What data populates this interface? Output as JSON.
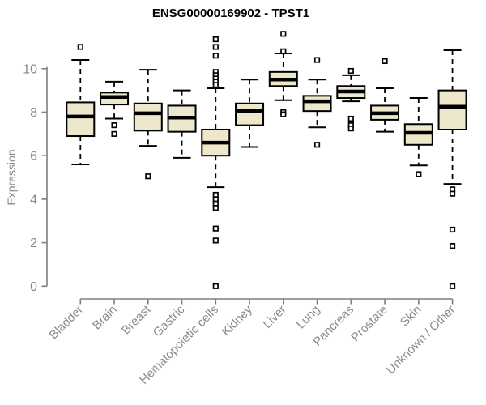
{
  "title": "ENSG00000169902 - TPST1",
  "colors": {
    "box_fill": "#EDE7CC",
    "box_stroke": "#000000",
    "median_color": "#000000",
    "outlier_fill": "#FFFFFF",
    "axis_line": "#7f7f7f",
    "axis_text": "#8a8a8a",
    "title_text": "#000000",
    "background": "#FFFFFF"
  },
  "chart_data": {
    "type": "boxplot",
    "title": "ENSG00000169902 - TPST1",
    "xlabel": "",
    "ylabel": "Expression",
    "ylim": [
      0,
      10
    ],
    "yticks": [
      0,
      2,
      4,
      6,
      8,
      10
    ],
    "grid": false,
    "legend": "none",
    "categories": [
      "Bladder",
      "Brain",
      "Breast",
      "Gastric",
      "Hematopoietic cells",
      "Kidney",
      "Liver",
      "Lung",
      "Pancreas",
      "Prostate",
      "Skin",
      "Unknown / Other"
    ],
    "series": [
      {
        "category": "Bladder",
        "whisker_low": 5.6,
        "q1": 6.9,
        "median": 7.8,
        "q3": 8.45,
        "whisker_high": 10.4,
        "outliers": [
          11.0
        ]
      },
      {
        "category": "Brain",
        "whisker_low": 7.7,
        "q1": 8.35,
        "median": 8.7,
        "q3": 8.9,
        "whisker_high": 9.4,
        "outliers": [
          7.4,
          7.0
        ]
      },
      {
        "category": "Breast",
        "whisker_low": 6.45,
        "q1": 7.15,
        "median": 7.95,
        "q3": 8.4,
        "whisker_high": 9.95,
        "outliers": [
          5.05
        ]
      },
      {
        "category": "Gastric",
        "whisker_low": 5.9,
        "q1": 7.1,
        "median": 7.75,
        "q3": 8.3,
        "whisker_high": 9.0,
        "outliers": []
      },
      {
        "category": "Hematopoietic cells",
        "whisker_low": 4.55,
        "q1": 6.0,
        "median": 6.6,
        "q3": 7.2,
        "whisker_high": 9.1,
        "outliers": [
          11.35,
          11.0,
          10.6,
          9.85,
          9.7,
          9.55,
          9.4,
          9.25,
          4.2,
          4.0,
          3.8,
          3.6,
          2.65,
          2.1,
          0.0
        ]
      },
      {
        "category": "Kidney",
        "whisker_low": 6.4,
        "q1": 7.4,
        "median": 8.05,
        "q3": 8.4,
        "whisker_high": 9.5,
        "outliers": []
      },
      {
        "category": "Liver",
        "whisker_low": 8.55,
        "q1": 9.2,
        "median": 9.5,
        "q3": 9.85,
        "whisker_high": 10.7,
        "outliers": [
          11.6,
          10.8,
          8.0,
          7.9
        ]
      },
      {
        "category": "Lung",
        "whisker_low": 7.3,
        "q1": 8.05,
        "median": 8.5,
        "q3": 8.75,
        "whisker_high": 9.5,
        "outliers": [
          10.4,
          6.5
        ]
      },
      {
        "category": "Pancreas",
        "whisker_low": 8.5,
        "q1": 8.65,
        "median": 8.95,
        "q3": 9.2,
        "whisker_high": 9.7,
        "outliers": [
          9.9,
          7.7,
          7.4,
          7.25
        ]
      },
      {
        "category": "Prostate",
        "whisker_low": 7.1,
        "q1": 7.65,
        "median": 7.95,
        "q3": 8.3,
        "whisker_high": 9.1,
        "outliers": [
          10.35
        ]
      },
      {
        "category": "Skin",
        "whisker_low": 5.55,
        "q1": 6.5,
        "median": 7.05,
        "q3": 7.45,
        "whisker_high": 8.65,
        "outliers": [
          5.15
        ]
      },
      {
        "category": "Unknown / Other",
        "whisker_low": 4.7,
        "q1": 7.2,
        "median": 8.25,
        "q3": 9.0,
        "whisker_high": 10.85,
        "outliers": [
          4.45,
          4.25,
          2.6,
          1.85,
          0.0
        ]
      }
    ]
  }
}
